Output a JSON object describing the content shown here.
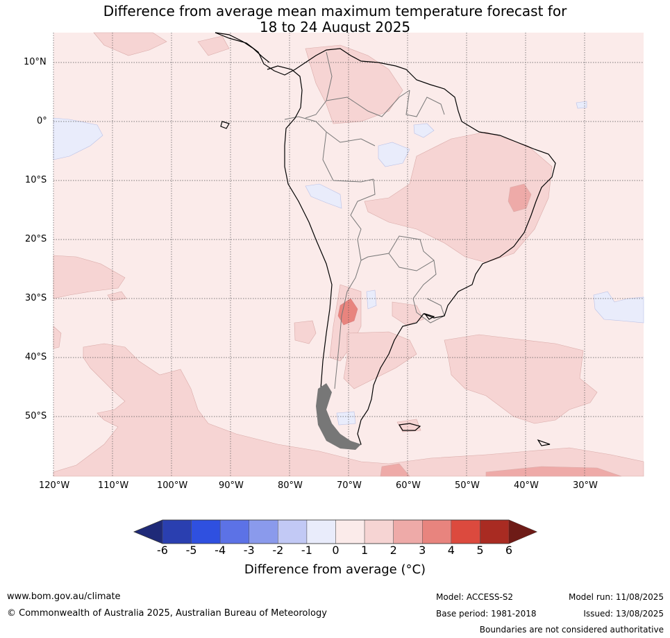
{
  "title_line1": "Difference from average mean maximum temperature forecast for",
  "title_line2": "18 to 24 August 2025",
  "lat_labels": [
    "10°N",
    "0°",
    "10°S",
    "20°S",
    "30°S",
    "40°S",
    "50°S"
  ],
  "lon_labels": [
    "120°W",
    "110°W",
    "100°W",
    "90°W",
    "80°W",
    "70°W",
    "60°W",
    "50°W",
    "40°W",
    "30°W"
  ],
  "colorbar": {
    "ticks": [
      "-6",
      "-5",
      "-4",
      "-3",
      "-2",
      "-1",
      "0",
      "1",
      "2",
      "3",
      "4",
      "5",
      "6"
    ],
    "colors": [
      "#1f2a78",
      "#2a3fb0",
      "#2f50e0",
      "#5c72e6",
      "#8a9aec",
      "#c2c9f5",
      "#e9ecfb",
      "#fbebea",
      "#f6d4d3",
      "#eeaaa8",
      "#e8847e",
      "#dc4a3e",
      "#a92b22",
      "#6e1b17"
    ],
    "label": "Difference from average (°C)"
  },
  "footer": {
    "website": "www.bom.gov.au/climate",
    "copyright": "© Commonwealth of Australia 2025, Australian Bureau of Meteorology",
    "model": "Model: ACCESS-S2",
    "base_period": "Base period: 1981-2018",
    "model_run": "Model run: 11/08/2025",
    "issued": "Issued: 13/08/2025",
    "disclaimer": "Boundaries are not considered authoritative"
  }
}
